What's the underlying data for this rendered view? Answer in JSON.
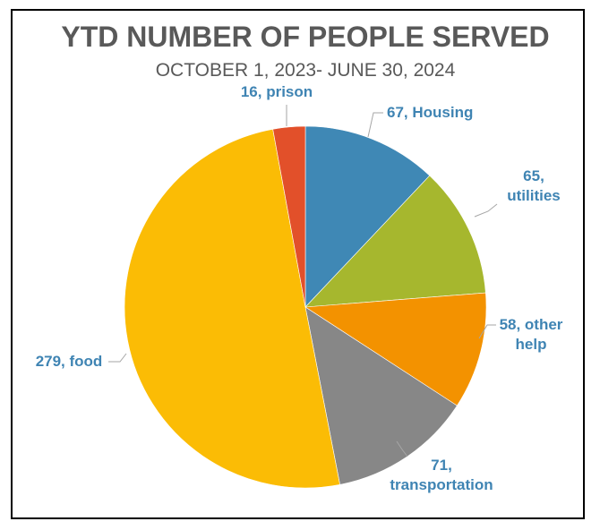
{
  "chart_data": {
    "type": "pie",
    "title": "YTD NUMBER OF PEOPLE SERVED",
    "subtitle": "OCTOBER 1, 2023- JUNE 30, 2024",
    "label_color": "#3f84b3",
    "slices": [
      {
        "label": "Housing",
        "value": 67,
        "color": "#3f88b5",
        "text_lines": [
          "67, Housing"
        ]
      },
      {
        "label": "utilities",
        "value": 65,
        "color": "#a6b72e",
        "text_lines": [
          "65,",
          "utilities"
        ]
      },
      {
        "label": "other help",
        "value": 58,
        "color": "#f39200",
        "text_lines": [
          "58, other",
          "help"
        ]
      },
      {
        "label": "transportation",
        "value": 71,
        "color": "#878787",
        "text_lines": [
          "71,",
          "transportation"
        ]
      },
      {
        "label": "food",
        "value": 279,
        "color": "#fbbc05",
        "text_lines": [
          "279, food"
        ]
      },
      {
        "label": "prison",
        "value": 16,
        "color": "#e2502a",
        "text_lines": [
          "16, prison"
        ]
      }
    ]
  }
}
